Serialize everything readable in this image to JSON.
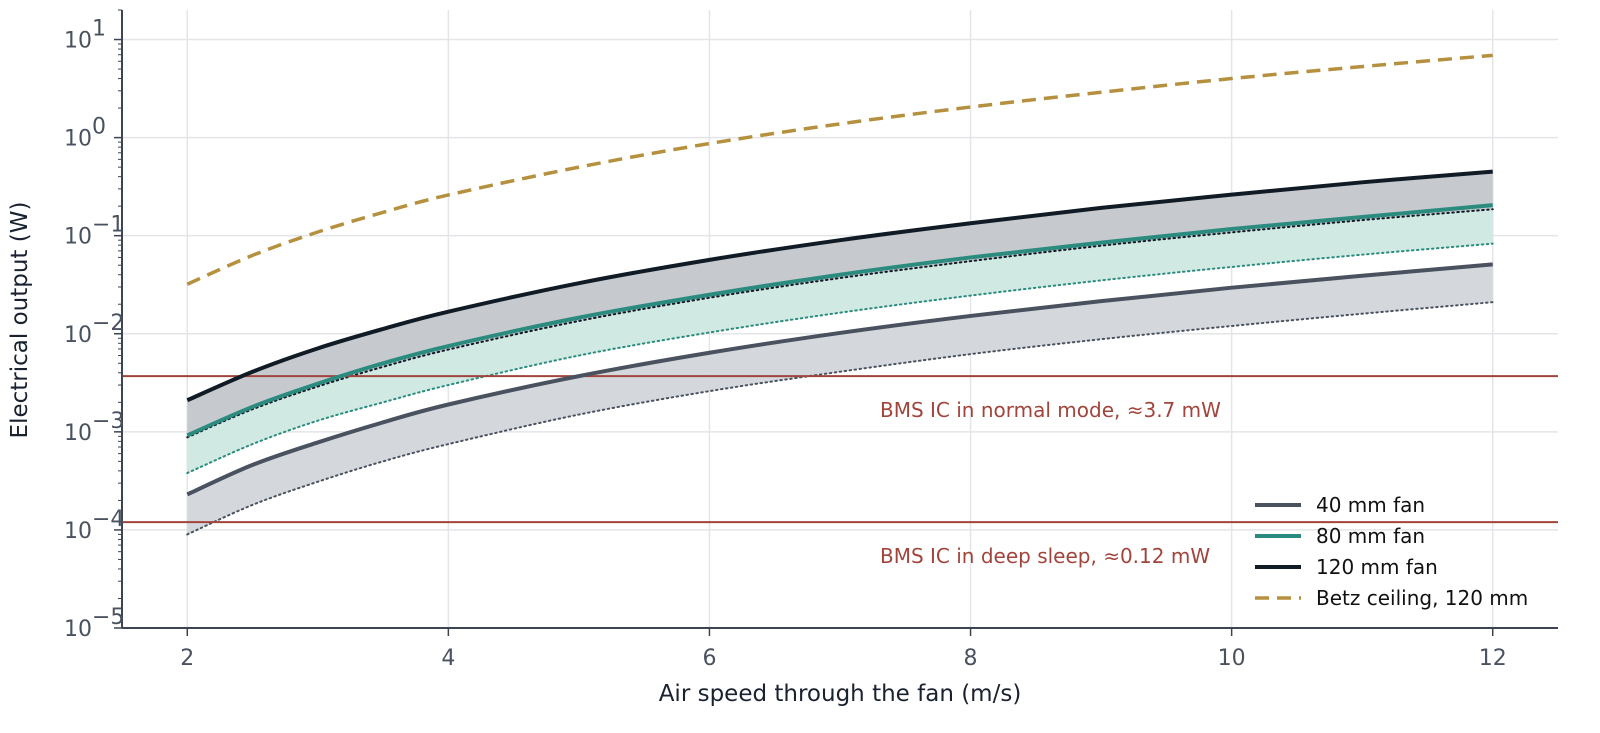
{
  "chart_data": {
    "type": "line",
    "x_scale": "linear",
    "y_scale": "log",
    "xlabel": "Air speed through the fan (m/s)",
    "ylabel": "Electrical output (W)",
    "xlim": [
      1.5,
      12.5
    ],
    "ylim": [
      1e-05,
      20
    ],
    "x_ticks": [
      2,
      4,
      6,
      8,
      10,
      12
    ],
    "x_tick_labels": [
      "2",
      "4",
      "6",
      "8",
      "10",
      "12"
    ],
    "y_ticks": [
      1e-05,
      0.0001,
      0.001,
      0.01,
      0.1,
      1,
      10
    ],
    "y_tick_labels": [
      {
        "base": "10",
        "exp": "−5"
      },
      {
        "base": "10",
        "exp": "−4"
      },
      {
        "base": "10",
        "exp": "−3"
      },
      {
        "base": "10",
        "exp": "−2"
      },
      {
        "base": "10",
        "exp": "−1"
      },
      {
        "base": "10",
        "exp": "0"
      },
      {
        "base": "10",
        "exp": "1"
      }
    ],
    "grid": true,
    "legend_position": "lower-right",
    "x": [
      2,
      2.5,
      3,
      3.5,
      4,
      5,
      6,
      7,
      8,
      9,
      10,
      11,
      12
    ],
    "series": [
      {
        "name": "40 mm fan",
        "style": "solid",
        "color": "#4a5260",
        "values": [
          0.00023,
          0.00046,
          0.00078,
          0.00125,
          0.0019,
          0.0037,
          0.0064,
          0.0102,
          0.0152,
          0.0215,
          0.0295,
          0.039,
          0.051
        ],
        "band_lower": [
          9e-05,
          0.00018,
          0.00031,
          0.0005,
          0.00075,
          0.0015,
          0.0026,
          0.0041,
          0.0062,
          0.0088,
          0.012,
          0.016,
          0.021
        ],
        "band_color": "#d2d6db"
      },
      {
        "name": "80 mm fan",
        "style": "solid",
        "color": "#2a8b7e",
        "values": [
          0.00092,
          0.0018,
          0.0031,
          0.005,
          0.0075,
          0.0146,
          0.025,
          0.04,
          0.06,
          0.085,
          0.117,
          0.155,
          0.205
        ],
        "band_lower": [
          0.00038,
          0.00075,
          0.0013,
          0.002,
          0.003,
          0.006,
          0.0103,
          0.0164,
          0.0245,
          0.035,
          0.048,
          0.064,
          0.083
        ],
        "band_color": "#cde8e2"
      },
      {
        "name": "120 mm fan",
        "style": "solid",
        "color": "#111b26",
        "values": [
          0.0021,
          0.0041,
          0.0071,
          0.0112,
          0.0168,
          0.0328,
          0.0567,
          0.09,
          0.134,
          0.192,
          0.262,
          0.35,
          0.45
        ],
        "band_lower": [
          0.00088,
          0.0017,
          0.0029,
          0.0046,
          0.0069,
          0.0135,
          0.0233,
          0.037,
          0.055,
          0.079,
          0.108,
          0.144,
          0.186
        ],
        "band_color": "#c3c7cb"
      },
      {
        "name": "Betz ceiling, 120 mm",
        "style": "dashed",
        "color": "#b5913f",
        "values": [
          0.032,
          0.063,
          0.109,
          0.173,
          0.26,
          0.5,
          0.87,
          1.38,
          2.05,
          2.9,
          4.0,
          5.3,
          6.9
        ]
      }
    ],
    "reference_lines": [
      {
        "y": 0.0037,
        "label": "BMS IC in normal mode, ≈3.7 mW",
        "color": "#a1453c"
      },
      {
        "y": 0.00012,
        "label": "BMS IC in deep sleep, ≈0.12 mW",
        "color": "#a1453c"
      }
    ]
  }
}
